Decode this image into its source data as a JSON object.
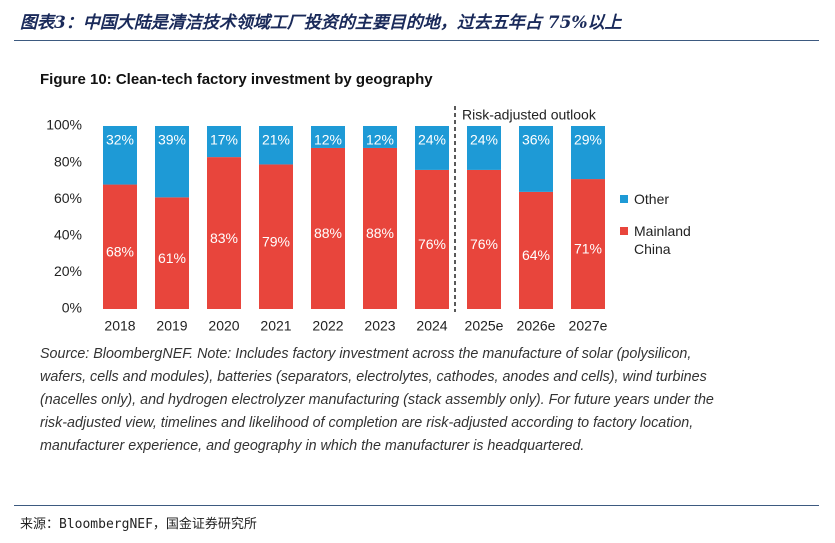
{
  "header": {
    "title": "图表3：中国大陆是清洁技术领域工厂投资的主要目的地，过去五年占 75%以上"
  },
  "chart_data": {
    "type": "stacked_bar",
    "title": "Figure 10: Clean-tech factory investment by geography",
    "categories": [
      "2018",
      "2019",
      "2020",
      "2021",
      "2022",
      "2023",
      "2024",
      "2025e",
      "2026e",
      "2027e"
    ],
    "series": [
      {
        "name": "Mainland China",
        "color": "#e8453c",
        "values": [
          68,
          61,
          83,
          79,
          88,
          88,
          76,
          76,
          64,
          71
        ],
        "value_labels": [
          "68%",
          "61%",
          "83%",
          "79%",
          "88%",
          "88%",
          "76%",
          "76%",
          "64%",
          "71%"
        ]
      },
      {
        "name": "Other",
        "color": "#1e9ad6",
        "values": [
          32,
          39,
          17,
          21,
          12,
          12,
          24,
          24,
          36,
          29
        ],
        "value_labels": [
          "32%",
          "39%",
          "17%",
          "21%",
          "12%",
          "12%",
          "24%",
          "24%",
          "36%",
          "29%"
        ]
      }
    ],
    "ylim": [
      0,
      100
    ],
    "yticks": [
      {
        "value": 0,
        "label": "0%"
      },
      {
        "value": 20,
        "label": "20%"
      },
      {
        "value": 40,
        "label": "40%"
      },
      {
        "value": 60,
        "label": "60%"
      },
      {
        "value": 80,
        "label": "80%"
      },
      {
        "value": 100,
        "label": "100%"
      }
    ],
    "annotation": "Risk-adjusted outlook",
    "legend": "right"
  },
  "note": "Source: BloombergNEF. Note: Includes factory investment across the manufacture of solar (polysilicon, wafers, cells and modules), batteries (separators, electrolytes, cathodes, anodes and cells), wind turbines (nacelles only), and hydrogen electrolyzer manufacturing (stack assembly only). For future years under the risk-adjusted view, timelines and likelihood of completion are risk-adjusted according to factory location, manufacturer experience, and geography in which the manufacturer is headquartered.",
  "source": "来源：BloombergNEF，国金证券研究所"
}
